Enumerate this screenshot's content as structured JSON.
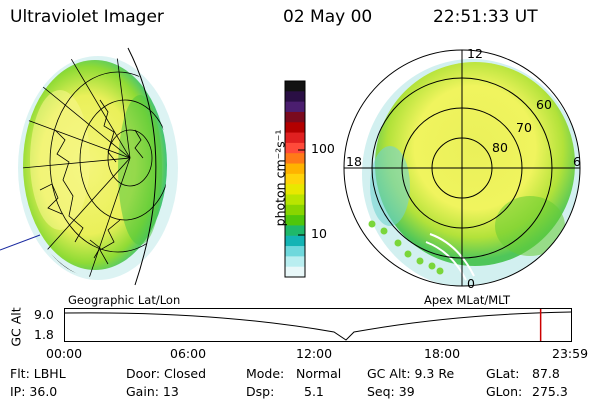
{
  "header": {
    "instrument": "Ultraviolet Imager",
    "date": "02 May 00",
    "time": "22:51:33 UT"
  },
  "left_panel": {
    "caption": "Geographic Lat/Lon"
  },
  "right_panel": {
    "caption": "Apex MLat/MLT",
    "mlt_labels": {
      "top": "12",
      "left": "18",
      "right": "6",
      "bottom": "0"
    },
    "lat_labels": [
      "60",
      "70",
      "80"
    ]
  },
  "colorbar": {
    "unit_label": "photon cm⁻²s⁻¹",
    "tick_labels": [
      "100",
      "10"
    ],
    "colors": [
      "#121212",
      "#2a0f44",
      "#4b1e6f",
      "#7a0a1e",
      "#b30000",
      "#e02020",
      "#ff4a3a",
      "#ff7a18",
      "#ffb300",
      "#ffd40a",
      "#e8e800",
      "#b9e500",
      "#88d500",
      "#4fc60b",
      "#1fb86a",
      "#14b4b4",
      "#6fd8dc",
      "#b9eef0",
      "#e9f8f9"
    ]
  },
  "timeline": {
    "y_label": "GC Alt",
    "y_max": "9.0",
    "y_min": "1.8",
    "x_ticks": [
      "00:00",
      "06:00",
      "12:00",
      "18:00",
      "23:59"
    ],
    "current_time_fraction": 0.94
  },
  "status": {
    "col1": [
      "Flt: LBHL",
      "IP: 36.0"
    ],
    "col2": [
      "Door: Closed",
      "Gain: 13"
    ],
    "col3a": [
      "Mode:",
      "Dsp:"
    ],
    "col3b": [
      "Normal",
      "5.1"
    ],
    "col4": [
      "GC Alt: 9.3 Re",
      "Seq: 39"
    ],
    "col5": [
      "GLat:",
      "GLon:"
    ],
    "col6": [
      "87.8",
      "275.3"
    ]
  },
  "colors": {
    "accent_marker": "#cc0000",
    "oval_yellow": "#eef25a",
    "oval_green": "#6fcf25",
    "oval_cyan": "#7fd9d8"
  }
}
